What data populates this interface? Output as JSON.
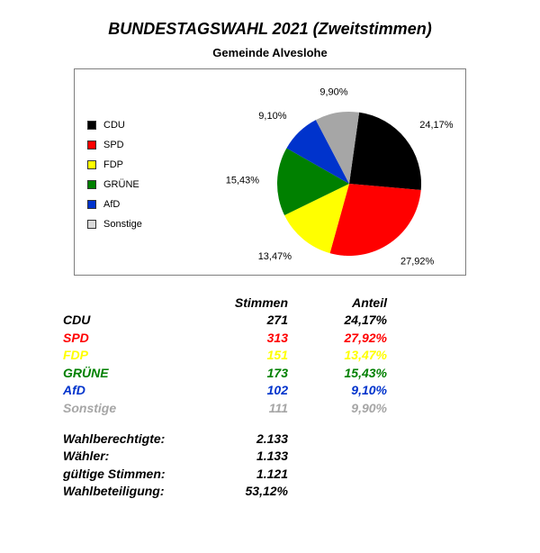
{
  "title": "BUNDESTAGSWAHL 2021 (Zweitstimmen)",
  "subtitle": "Gemeinde Alveslohe",
  "chart": {
    "type": "pie",
    "background_color": "#ffffff",
    "border_color": "#7f7f7f",
    "start_angle_deg": -82,
    "direction": "clockwise",
    "label_fontsize": 11,
    "legend_fontsize": 11,
    "slices": [
      {
        "label": "CDU",
        "value": 24.17,
        "display": "24,17%",
        "color": "#000000"
      },
      {
        "label": "SPD",
        "value": 27.92,
        "display": "27,92%",
        "color": "#ff0000"
      },
      {
        "label": "FDP",
        "value": 13.47,
        "display": "13,47%",
        "color": "#ffff00"
      },
      {
        "label": "GRÜNE",
        "value": 15.43,
        "display": "15,43%",
        "color": "#008000"
      },
      {
        "label": "AfD",
        "value": 9.1,
        "display": "9,10%",
        "color": "#0033cc"
      },
      {
        "label": "Sonstige",
        "value": 9.9,
        "display": "9,90%",
        "color": "#a6a6a6"
      }
    ],
    "legend_swatch_fill": {
      "CDU": "#000000",
      "SPD": "#ff0000",
      "FDP": "#ffff00",
      "GRÜNE": "#008000",
      "AfD": "#0033cc",
      "Sonstige": "#d9d9d9"
    }
  },
  "table": {
    "head": {
      "c1": "",
      "c2": "Stimmen",
      "c3": "Anteil"
    },
    "rows": [
      {
        "label": "CDU",
        "stimmen": "271",
        "anteil": "24,17%",
        "color": "#000000"
      },
      {
        "label": "SPD",
        "stimmen": "313",
        "anteil": "27,92%",
        "color": "#ff0000"
      },
      {
        "label": "FDP",
        "stimmen": "151",
        "anteil": "13,47%",
        "color": "#ffff00"
      },
      {
        "label": "GRÜNE",
        "stimmen": "173",
        "anteil": "15,43%",
        "color": "#008000"
      },
      {
        "label": "AfD",
        "stimmen": "102",
        "anteil": "9,10%",
        "color": "#0033cc"
      },
      {
        "label": "Sonstige",
        "stimmen": "111",
        "anteil": "9,90%",
        "color": "#a6a6a6"
      }
    ]
  },
  "stats": [
    {
      "label": "Wahlberechtigte:",
      "value": "2.133"
    },
    {
      "label": "Wähler:",
      "value": "1.133"
    },
    {
      "label": "gültige Stimmen:",
      "value": "1.121"
    },
    {
      "label": "Wahlbeteiligung:",
      "value": "53,12%"
    }
  ]
}
